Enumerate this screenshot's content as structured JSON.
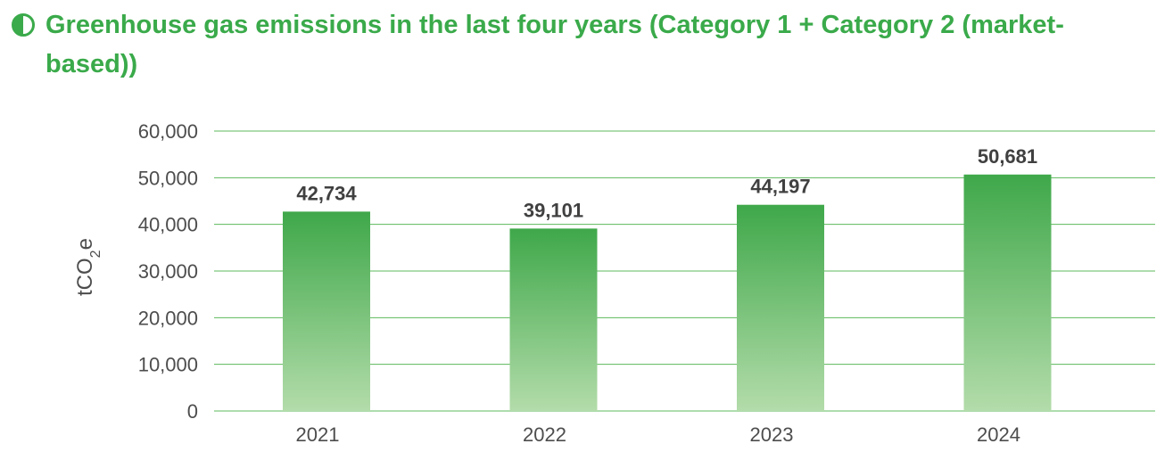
{
  "title": "Greenhouse gas emissions in the last four years (Category 1 + Category 2 (market-based))",
  "icon": "half-filled-circle-icon",
  "colors": {
    "accent": "#3aaa4a",
    "grid": "#5cb85c",
    "bar_top": "#3fa84a",
    "bar_bottom": "#b3dcaa",
    "text": "#4d4d4d"
  },
  "chart_data": {
    "type": "bar",
    "categories": [
      "2021",
      "2022",
      "2023",
      "2024"
    ],
    "values": [
      42734,
      39101,
      44197,
      50681
    ],
    "data_labels": [
      "42,734",
      "39,101",
      "44,197",
      "50,681"
    ],
    "ylabel": "tCO2e",
    "ylim": [
      0,
      60000
    ],
    "yticks": [
      0,
      10000,
      20000,
      30000,
      40000,
      50000,
      60000
    ],
    "ytick_labels": [
      "0",
      "10,000",
      "20,000",
      "30,000",
      "40,000",
      "50,000",
      "60,000"
    ],
    "grid": true,
    "legend": "none"
  }
}
